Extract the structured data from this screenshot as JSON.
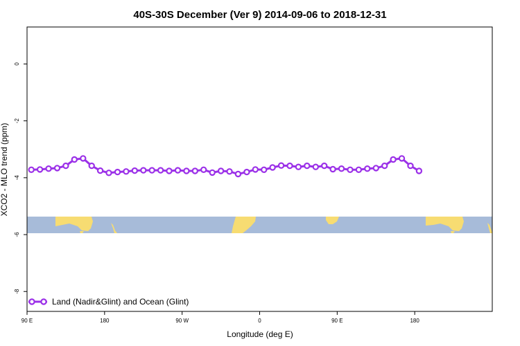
{
  "chart_data": {
    "type": "line",
    "title": "40S-30S December (Ver 9)   2014-09-06 to 2018-12-31",
    "xlabel": "Longitude (deg E)",
    "ylabel": "XCO2 - MLO trend (ppm)",
    "xlim": [
      -90,
      180
    ],
    "ylim": [
      -8.7,
      1.3
    ],
    "x_ticks": [
      {
        "value": -90,
        "label": "90 E"
      },
      {
        "value": -45,
        "label": "180"
      },
      {
        "value": 0,
        "label": "90 W"
      },
      {
        "value": 45,
        "label": "0"
      },
      {
        "value": 90,
        "label": "90 E"
      },
      {
        "value": 135,
        "label": "180"
      }
    ],
    "y_ticks": [
      {
        "value": 0,
        "label": "0"
      },
      {
        "value": -2,
        "label": "-2"
      },
      {
        "value": -4,
        "label": "-4"
      },
      {
        "value": -6,
        "label": "-6"
      },
      {
        "value": -8,
        "label": "-8"
      }
    ],
    "grid": false,
    "legend": {
      "position": "bottom-left",
      "label": "Land (Nadir&Glint) and Ocean (Glint)"
    },
    "series": [
      {
        "name": "Land (Nadir&Glint) and Ocean (Glint)",
        "color": "#9b30e8",
        "x": [
          -87.5,
          -82.5,
          -77.5,
          -72.5,
          -67.5,
          -62.5,
          -57.5,
          -52.5,
          -47.5,
          -42.5,
          -37.5,
          -32.5,
          -27.5,
          -22.5,
          -17.5,
          -12.5,
          -7.5,
          -2.5,
          2.5,
          7.5,
          12.5,
          17.5,
          22.5,
          27.5,
          32.5,
          37.5,
          42.5,
          47.5,
          52.5,
          57.5,
          62.5,
          67.5,
          72.5,
          77.5,
          82.5,
          87.5,
          92.5,
          97.5,
          102.5,
          107.5,
          112.5,
          117.5,
          122.5,
          127.5,
          132.5,
          137.5
        ],
        "values": [
          -3.72,
          -3.71,
          -3.68,
          -3.66,
          -3.58,
          -3.36,
          -3.32,
          -3.58,
          -3.75,
          -3.83,
          -3.8,
          -3.78,
          -3.75,
          -3.74,
          -3.74,
          -3.74,
          -3.76,
          -3.74,
          -3.76,
          -3.76,
          -3.72,
          -3.82,
          -3.76,
          -3.78,
          -3.87,
          -3.8,
          -3.71,
          -3.72,
          -3.64,
          -3.57,
          -3.58,
          -3.62,
          -3.58,
          -3.62,
          -3.58,
          -3.7,
          -3.68,
          -3.72,
          -3.72,
          -3.68,
          -3.66,
          -3.58,
          -3.36,
          -3.32,
          -3.58,
          -3.76
        ]
      }
    ]
  }
}
